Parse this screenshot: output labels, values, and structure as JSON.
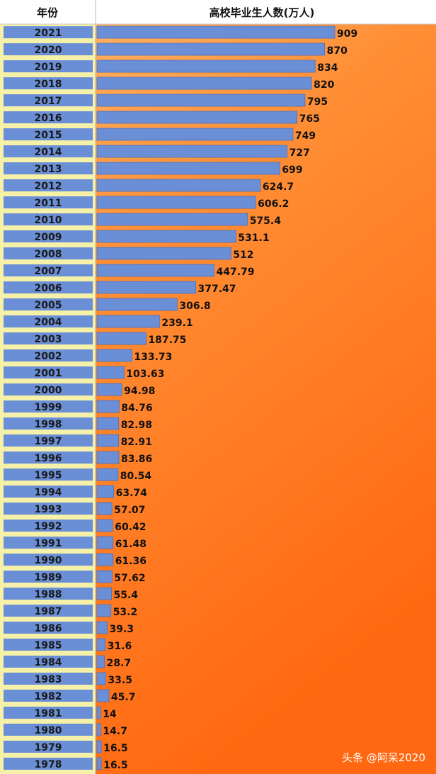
{
  "chart_data": {
    "type": "bar",
    "orientation": "horizontal",
    "column_headers": {
      "category": "年份",
      "value": "高校毕业生人数(万人)"
    },
    "categories": [
      "2021",
      "2020",
      "2019",
      "2018",
      "2017",
      "2016",
      "2015",
      "2014",
      "2013",
      "2012",
      "2011",
      "2010",
      "2009",
      "2008",
      "2007",
      "2006",
      "2005",
      "2004",
      "2003",
      "2002",
      "2001",
      "2000",
      "1999",
      "1998",
      "1997",
      "1996",
      "1995",
      "1994",
      "1993",
      "1992",
      "1991",
      "1990",
      "1989",
      "1988",
      "1987",
      "1986",
      "1985",
      "1984",
      "1983",
      "1982",
      "1981",
      "1980",
      "1979",
      "1978"
    ],
    "values": [
      909,
      870,
      834,
      820,
      795,
      765,
      749,
      727,
      699,
      624.7,
      606.2,
      575.4,
      531.1,
      512,
      447.79,
      377.47,
      306.8,
      239.1,
      187.75,
      133.73,
      103.63,
      94.98,
      84.76,
      82.98,
      82.91,
      83.86,
      80.54,
      63.74,
      57.07,
      60.42,
      61.48,
      61.36,
      57.62,
      55.4,
      53.2,
      39.3,
      31.6,
      28.7,
      33.5,
      45.7,
      14,
      14.7,
      16.5,
      16.5
    ],
    "value_labels": [
      "909",
      "870",
      "834",
      "820",
      "795",
      "765",
      "749",
      "727",
      "699",
      "624.7",
      "606.2",
      "575.4",
      "531.1",
      "512",
      "447.79",
      "377.47",
      "306.8",
      "239.1",
      "187.75",
      "133.73",
      "103.63",
      "94.98",
      "84.76",
      "82.98",
      "82.91",
      "83.86",
      "80.54",
      "63.74",
      "57.07",
      "60.42",
      "61.48",
      "61.36",
      "57.62",
      "55.4",
      "53.2",
      "39.3",
      "31.6",
      "28.7",
      "33.5",
      "45.7",
      "14",
      "14.7",
      "16.5",
      "16.5"
    ],
    "colors": {
      "bar": "#6b8fd6",
      "bar_edge": "#4a6fbf",
      "year_cell": "#6b8fd6",
      "year_cell_border": "#f2ee9a",
      "bg_top": "#ffa24a",
      "bg_bottom": "#ff6a12"
    }
  },
  "watermark": "头条 @阿呆2020"
}
